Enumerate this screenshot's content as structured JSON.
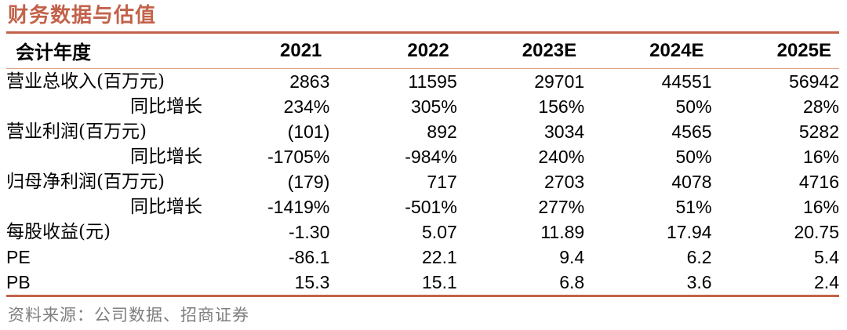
{
  "title": "财务数据与估值",
  "colors": {
    "accent": "#C2624A",
    "header_rule": "#DFA183",
    "text": "#000000",
    "source_text": "#7F7F7F"
  },
  "table": {
    "header": [
      "会计年度",
      "2021",
      "2022",
      "2023E",
      "2024E",
      "2025E"
    ],
    "rows": [
      {
        "label": "营业总收入(百万元)",
        "values": [
          "2863",
          "11595",
          "29701",
          "44551",
          "56942"
        ]
      },
      {
        "label": "同比增长",
        "values": [
          "234%",
          "305%",
          "156%",
          "50%",
          "28%"
        ]
      },
      {
        "label": "营业利润(百万元)",
        "values": [
          "(101)",
          "892",
          "3034",
          "4565",
          "5282"
        ]
      },
      {
        "label": "同比增长",
        "values": [
          "-1705%",
          "-984%",
          "240%",
          "50%",
          "16%"
        ]
      },
      {
        "label": "归母净利润(百万元)",
        "values": [
          "(179)",
          "717",
          "2703",
          "4078",
          "4716"
        ]
      },
      {
        "label": "同比增长",
        "values": [
          "-1419%",
          "-501%",
          "277%",
          "51%",
          "16%"
        ]
      },
      {
        "label": "每股收益(元)",
        "values": [
          "-1.30",
          "5.07",
          "11.89",
          "17.94",
          "20.75"
        ]
      },
      {
        "label": "PE",
        "values": [
          "-86.1",
          "22.1",
          "9.4",
          "6.2",
          "5.4"
        ]
      },
      {
        "label": "PB",
        "values": [
          "15.3",
          "15.1",
          "6.8",
          "3.6",
          "2.4"
        ]
      }
    ]
  },
  "footer": {
    "source_label": "资料来源：公司数据、招商证券"
  }
}
